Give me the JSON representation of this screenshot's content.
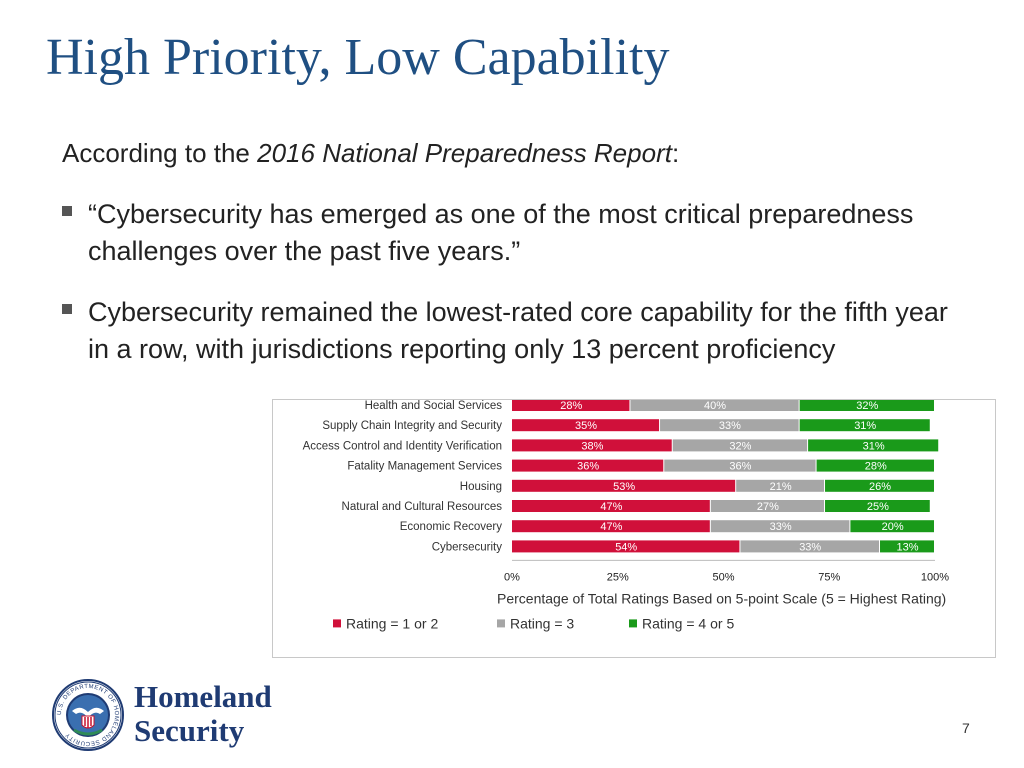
{
  "slide": {
    "title": "High Priority, Low Capability",
    "intro_prefix": "According to the ",
    "intro_italic": "2016 National Preparedness Report",
    "intro_suffix": ":",
    "bullets": [
      "“Cybersecurity has emerged as one of the most critical preparedness challenges over the past five years.”",
      "Cybersecurity remained the lowest-rated core capability for the fifth year in a row, with jurisdictions reporting only 13 percent proficiency"
    ],
    "logo_text_line1": "Homeland",
    "logo_text_line2": "Security",
    "seal_text": "U.S. DEPARTMENT OF HOMELAND SECURITY",
    "page_number": "7"
  },
  "colors": {
    "title": "#1f4f82",
    "rating_low": "#d0103a",
    "rating_mid": "#a6a6a6",
    "rating_high": "#1a9a1a"
  },
  "chart_data": {
    "type": "bar",
    "orientation": "horizontal",
    "stacked": true,
    "categories": [
      "Health and Social Services",
      "Supply Chain Integrity and Security",
      "Access Control and Identity Verification",
      "Fatality Management Services",
      "Housing",
      "Natural and Cultural Resources",
      "Economic Recovery",
      "Cybersecurity"
    ],
    "series": [
      {
        "name": "Rating = 1 or 2",
        "color": "#d0103a",
        "values": [
          28,
          35,
          38,
          36,
          53,
          47,
          47,
          54
        ]
      },
      {
        "name": "Rating = 3",
        "color": "#a6a6a6",
        "values": [
          40,
          33,
          32,
          36,
          21,
          27,
          33,
          33
        ]
      },
      {
        "name": "Rating = 4 or 5",
        "color": "#1a9a1a",
        "values": [
          32,
          31,
          31,
          28,
          26,
          25,
          20,
          13
        ]
      }
    ],
    "xlabel": "Percentage of Total Ratings Based on 5-point Scale (5 = Highest Rating)",
    "xlim": [
      0,
      100
    ],
    "xticks": [
      "0%",
      "25%",
      "50%",
      "75%",
      "100%"
    ],
    "legend_position": "bottom",
    "grid": false
  }
}
